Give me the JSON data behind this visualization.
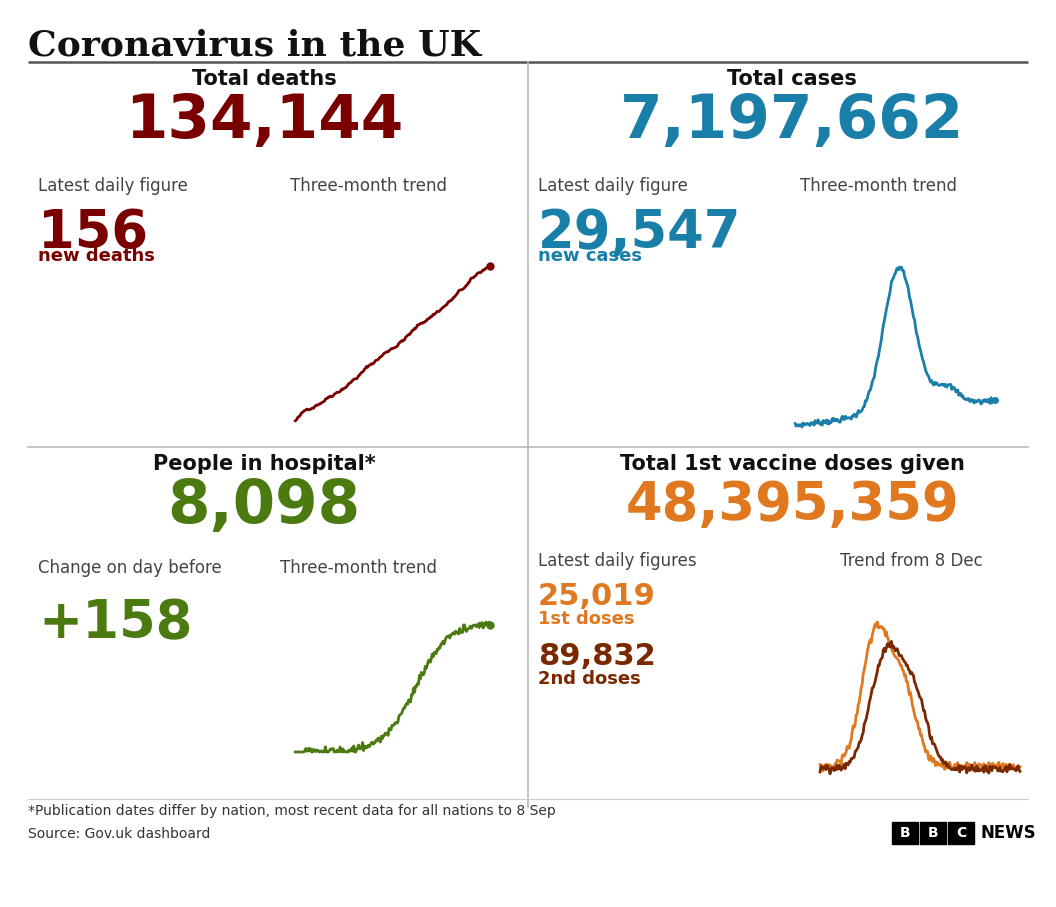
{
  "title": "Coronavirus in the UK",
  "bg_color": "#ffffff",
  "title_color": "#111111",
  "deaths_title": "Total deaths",
  "deaths_total": "134,144",
  "deaths_total_color": "#7a0000",
  "deaths_daily": "156",
  "deaths_daily_label": "new deaths",
  "deaths_color": "#7a0000",
  "deaths_label1": "Latest daily figure",
  "deaths_label2": "Three-month trend",
  "cases_title": "Total cases",
  "cases_total": "7,197,662",
  "cases_total_color": "#1a7fa8",
  "cases_daily": "29,547",
  "cases_daily_label": "new cases",
  "cases_color": "#1a7fa8",
  "cases_label1": "Latest daily figure",
  "cases_label2": "Three-month trend",
  "hospital_title": "People in hospital*",
  "hospital_total": "8,098",
  "hospital_total_color": "#4a7a10",
  "hospital_change": "+158",
  "hospital_change_color": "#4a7a10",
  "hospital_label1": "Change on day before",
  "hospital_label2": "Three-month trend",
  "hospital_color": "#4a7a10",
  "vaccine_title": "Total 1st vaccine doses given",
  "vaccine_total": "48,395,359",
  "vaccine_total_color": "#e07820",
  "vaccine_label1": "Latest daily figures",
  "vaccine_label2": "Trend from 8 Dec",
  "vaccine_1st_doses": "25,019",
  "vaccine_1st_label": "1st doses",
  "vaccine_1st_color": "#e07820",
  "vaccine_2nd_doses": "89,832",
  "vaccine_2nd_label": "2nd doses",
  "vaccine_2nd_color": "#7a2800",
  "footnote": "*Publication dates differ by nation, most recent data for all nations to 8 Sep",
  "source": "Source: Gov.uk dashboard"
}
